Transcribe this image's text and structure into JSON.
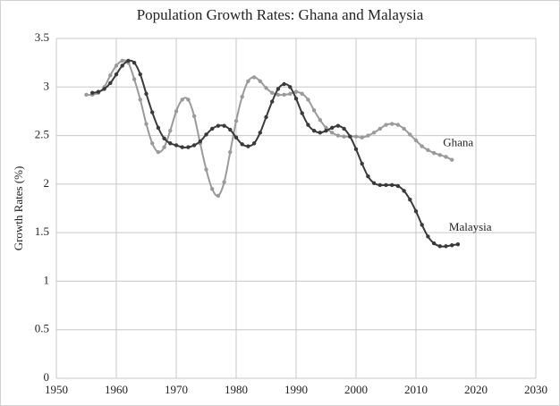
{
  "chart_data": {
    "type": "line",
    "title": "Population Growth Rates: Ghana and Malaysia",
    "y_label": "Growth Rates (%)",
    "x": [
      1955,
      1956,
      1957,
      1958,
      1959,
      1960,
      1961,
      1962,
      1963,
      1964,
      1965,
      1966,
      1967,
      1968,
      1969,
      1970,
      1971,
      1972,
      1973,
      1974,
      1975,
      1976,
      1977,
      1978,
      1979,
      1980,
      1981,
      1982,
      1983,
      1984,
      1985,
      1986,
      1987,
      1988,
      1989,
      1990,
      1991,
      1992,
      1993,
      1994,
      1995,
      1996,
      1997,
      1998,
      1999,
      2000,
      2001,
      2002,
      2003,
      2004,
      2005,
      2006,
      2007,
      2008,
      2009,
      2010,
      2011,
      2012,
      2013,
      2014,
      2015,
      2016,
      2017
    ],
    "series": [
      {
        "name": "Ghana",
        "color": "#9a9a9a",
        "values": [
          2.92,
          2.92,
          2.94,
          3.0,
          3.12,
          3.22,
          3.27,
          3.25,
          3.08,
          2.87,
          2.62,
          2.42,
          2.33,
          2.38,
          2.55,
          2.75,
          2.87,
          2.87,
          2.7,
          2.42,
          2.15,
          1.95,
          1.88,
          2.02,
          2.33,
          2.65,
          2.9,
          3.06,
          3.1,
          3.06,
          2.99,
          2.94,
          2.92,
          2.92,
          2.93,
          2.95,
          2.93,
          2.87,
          2.76,
          2.66,
          2.58,
          2.53,
          2.5,
          2.49,
          2.49,
          2.49,
          2.48,
          2.5,
          2.53,
          2.57,
          2.61,
          2.62,
          2.61,
          2.57,
          2.51,
          2.45,
          2.39,
          2.35,
          2.32,
          2.3,
          2.28,
          2.25,
          null
        ]
      },
      {
        "name": "Malaysia",
        "color": "#3a3a3a",
        "values": [
          null,
          2.94,
          2.95,
          2.98,
          3.04,
          3.13,
          3.22,
          3.27,
          3.25,
          3.13,
          2.93,
          2.74,
          2.58,
          2.47,
          2.42,
          2.4,
          2.38,
          2.38,
          2.4,
          2.44,
          2.51,
          2.57,
          2.6,
          2.6,
          2.56,
          2.48,
          2.41,
          2.39,
          2.42,
          2.53,
          2.69,
          2.85,
          2.98,
          3.03,
          3.0,
          2.88,
          2.73,
          2.61,
          2.55,
          2.53,
          2.55,
          2.58,
          2.6,
          2.57,
          2.49,
          2.36,
          2.21,
          2.08,
          2.01,
          1.99,
          1.99,
          1.99,
          1.98,
          1.93,
          1.84,
          1.72,
          1.58,
          1.46,
          1.39,
          1.36,
          1.36,
          1.37,
          1.38
        ]
      }
    ],
    "xlim": [
      1950,
      2030
    ],
    "xticks": [
      1950,
      1960,
      1970,
      1980,
      1990,
      2000,
      2010,
      2020,
      2030
    ],
    "ylim": [
      0,
      3.5
    ],
    "yticks": [
      0,
      0.5,
      1,
      1.5,
      2,
      2.5,
      3,
      3.5
    ],
    "grid": true
  }
}
